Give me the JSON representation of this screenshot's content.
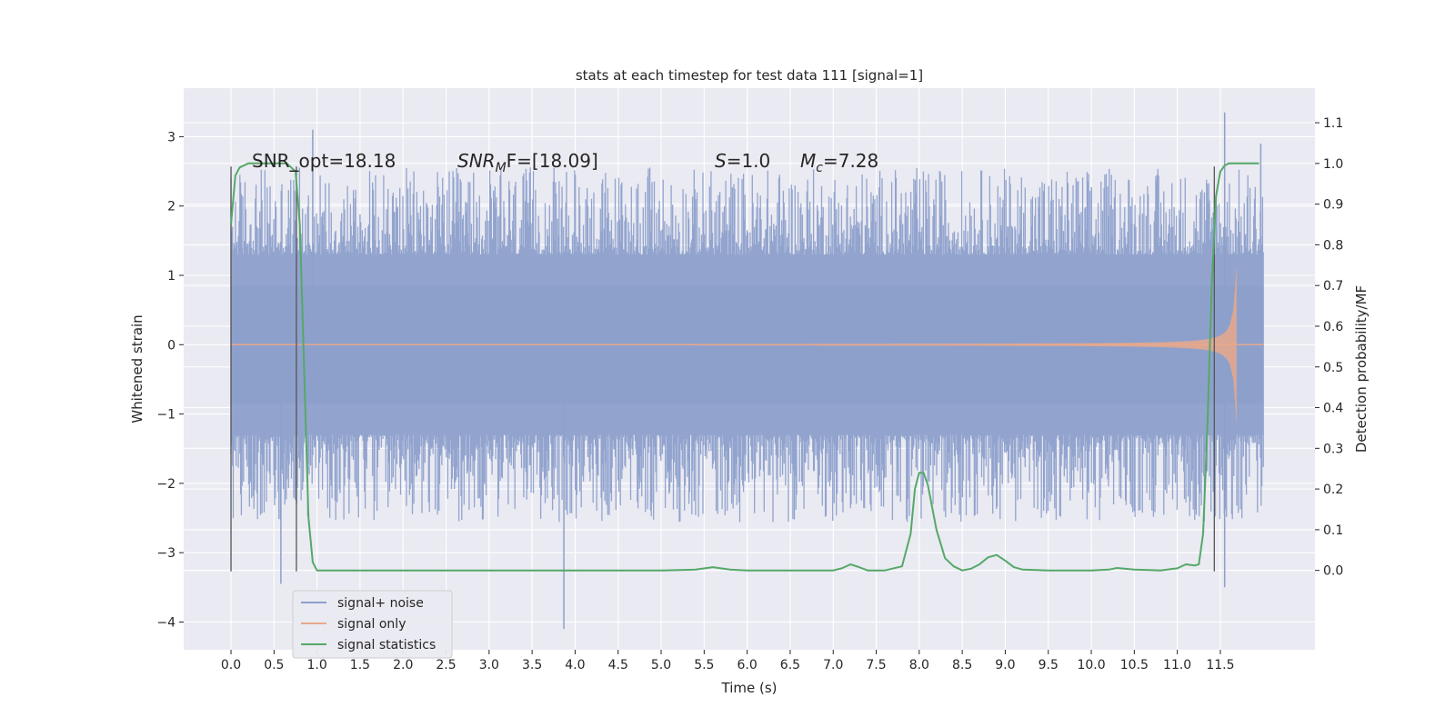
{
  "chart_data": {
    "type": "line",
    "title": "stats at each timestep for test data 111 [signal=1]",
    "xlabel": "Time (s)",
    "ylabel": "Whitened strain",
    "y2label": "Detection probability/MF",
    "xlim": [
      -0.55,
      12.6
    ],
    "ylim": [
      -4.4,
      3.7
    ],
    "y2lim": [
      -0.195,
      1.185
    ],
    "xticks": [
      "0.0",
      "0.5",
      "1.0",
      "1.5",
      "2.0",
      "2.5",
      "3.0",
      "3.5",
      "4.0",
      "4.5",
      "5.0",
      "5.5",
      "6.0",
      "6.5",
      "7.0",
      "7.5",
      "8.0",
      "8.5",
      "9.0",
      "9.5",
      "10.0",
      "10.5",
      "11.0",
      "11.5"
    ],
    "yticks": [
      "3",
      "2",
      "1",
      "0",
      "−1",
      "−2",
      "−3",
      "−4"
    ],
    "y2ticks": [
      "1.1",
      "1.0",
      "0.9",
      "0.8",
      "0.7",
      "0.6",
      "0.5",
      "0.4",
      "0.3",
      "0.2",
      "0.1",
      "0.0"
    ],
    "grid": true,
    "legend_position": "lower-left",
    "annotations": [
      {
        "text": "SNR_opt=18.18",
        "x": 0.2,
        "y": 2.6
      },
      {
        "text_main": "SNR",
        "text_sub": "M",
        "text_tail": "F=[18.09]",
        "x": 2.6,
        "y": 2.6
      },
      {
        "text_main": "S",
        "text_tail": "=1.0",
        "x": 5.6,
        "y": 2.6
      },
      {
        "text_main": "M",
        "text_sub": "c",
        "text_tail": "=7.28",
        "x": 6.6,
        "y": 2.6
      }
    ],
    "vertical_markers": [
      0.0,
      0.76,
      11.43
    ],
    "marker_y_range": [
      -3.27,
      2.57
    ],
    "series": [
      {
        "name": "signal+ noise",
        "color": "#8da0cb",
        "t_range": [
          0.0,
          12.0
        ],
        "band_half_width": 1.3,
        "noise_amplitude": 0.9,
        "extreme_values": [
          {
            "x": 0.95,
            "y": 3.1
          },
          {
            "x": 3.87,
            "y": -4.1
          },
          {
            "x": 11.55,
            "y": 3.35
          },
          {
            "x": 11.55,
            "y": -3.5
          },
          {
            "x": 0.58,
            "y": -3.45
          },
          {
            "x": 11.97,
            "y": 2.9
          }
        ]
      },
      {
        "name": "signal only",
        "color": "#e8a88c",
        "t_range": [
          0.0,
          11.7
        ],
        "merger_time": 11.7,
        "peak_amplitude": 1.4
      },
      {
        "name": "signal statistics",
        "color": "#55a868",
        "axis": "right",
        "x": [
          0.0,
          0.05,
          0.1,
          0.2,
          0.3,
          0.4,
          0.5,
          0.6,
          0.65,
          0.7,
          0.75,
          0.8,
          0.85,
          0.9,
          0.95,
          1.0,
          1.1,
          1.5,
          2.0,
          3.0,
          4.0,
          5.0,
          5.4,
          5.6,
          5.8,
          6.0,
          7.0,
          7.1,
          7.2,
          7.3,
          7.4,
          7.6,
          7.8,
          7.9,
          7.95,
          8.0,
          8.05,
          8.1,
          8.2,
          8.3,
          8.4,
          8.5,
          8.6,
          8.7,
          8.8,
          8.9,
          9.0,
          9.1,
          9.2,
          9.5,
          10.0,
          10.2,
          10.3,
          10.5,
          10.8,
          11.0,
          11.1,
          11.2,
          11.25,
          11.3,
          11.35,
          11.4,
          11.45,
          11.5,
          11.55,
          11.6,
          11.7,
          11.8,
          11.9,
          11.95
        ],
        "y": [
          0.85,
          0.97,
          0.99,
          1.0,
          1.0,
          1.0,
          1.0,
          1.0,
          1.0,
          0.99,
          0.98,
          0.85,
          0.5,
          0.13,
          0.02,
          0.0,
          0.0,
          0.0,
          0.0,
          0.0,
          0.0,
          0.0,
          0.002,
          0.008,
          0.002,
          0.0,
          0.0,
          0.005,
          0.015,
          0.008,
          0.0,
          0.0,
          0.01,
          0.09,
          0.2,
          0.24,
          0.24,
          0.21,
          0.1,
          0.03,
          0.01,
          0.0,
          0.004,
          0.015,
          0.032,
          0.038,
          0.024,
          0.008,
          0.002,
          0.0,
          0.0,
          0.002,
          0.006,
          0.002,
          0.0,
          0.005,
          0.015,
          0.012,
          0.015,
          0.09,
          0.35,
          0.7,
          0.92,
          0.98,
          0.995,
          1.0,
          1.0,
          1.0,
          1.0,
          1.0
        ]
      }
    ]
  }
}
